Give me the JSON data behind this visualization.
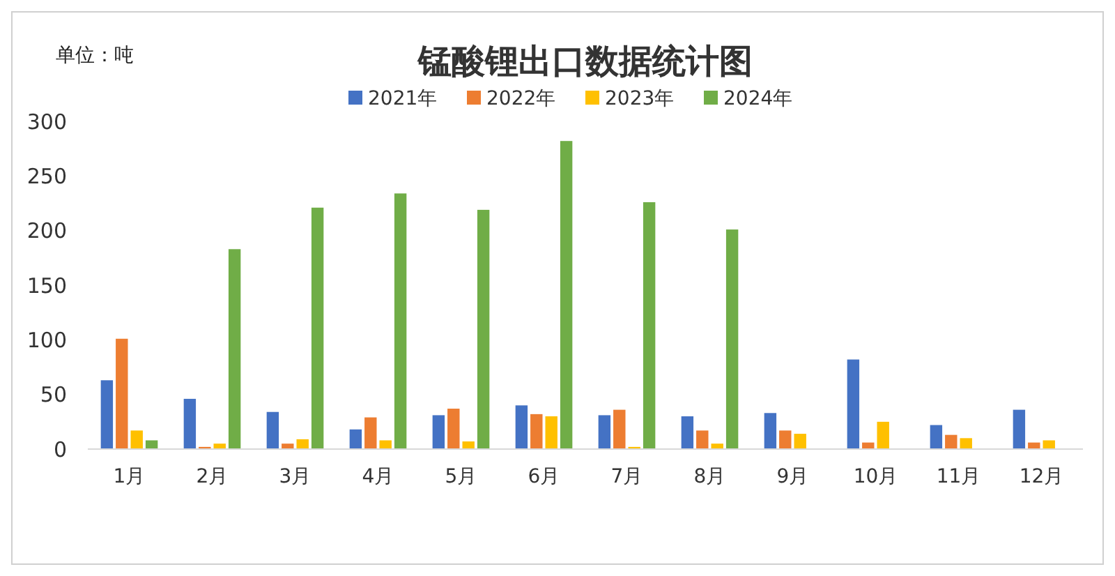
{
  "chart_data": {
    "type": "bar",
    "title": "锰酸锂出口数据统计图",
    "annotations": [
      "单位：吨"
    ],
    "categories": [
      "1月",
      "2月",
      "3月",
      "4月",
      "5月",
      "6月",
      "7月",
      "8月",
      "9月",
      "10月",
      "11月",
      "12月"
    ],
    "series": [
      {
        "name": "2021年",
        "color": "#4472c4",
        "values": [
          63,
          46,
          34,
          18,
          31,
          40,
          31,
          30,
          33,
          82,
          22,
          36
        ]
      },
      {
        "name": "2022年",
        "color": "#ed7d31",
        "values": [
          101,
          2,
          5,
          29,
          37,
          32,
          36,
          17,
          17,
          6,
          13,
          6
        ]
      },
      {
        "name": "2023年",
        "color": "#ffc000",
        "values": [
          17,
          5,
          9,
          8,
          7,
          30,
          2,
          5,
          14,
          25,
          10,
          8
        ]
      },
      {
        "name": "2024年",
        "color": "#70ad47",
        "values": [
          8,
          183,
          221,
          234,
          219,
          282,
          226,
          201,
          null,
          null,
          null,
          null
        ]
      }
    ],
    "ylim": [
      0,
      300
    ],
    "yticks": [
      0,
      50,
      100,
      150,
      200,
      250,
      300
    ],
    "grid": false,
    "legend": "top"
  }
}
